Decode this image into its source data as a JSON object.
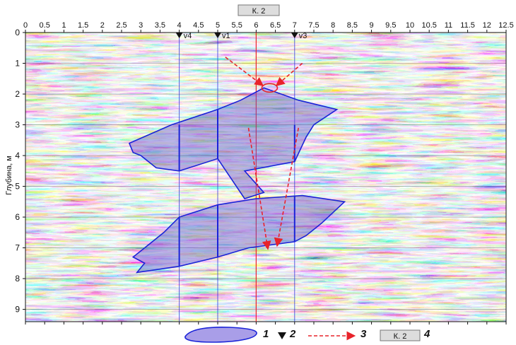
{
  "chart_data": {
    "type": "radargram",
    "xlim": [
      0,
      12.5
    ],
    "ylim": [
      0,
      9.4
    ],
    "x_ticks": [
      "0",
      "0.5",
      "1",
      "1.5",
      "2",
      "2.5",
      "3",
      "3.5",
      "4",
      "4.5",
      "5",
      "5.5",
      "6",
      "6.5",
      "7",
      "7.5",
      "8",
      "8.5",
      "9",
      "9.5",
      "10",
      "10.5",
      "11",
      "11.5",
      "12",
      "12.5"
    ],
    "y_ticks": [
      "0",
      "1",
      "2",
      "3",
      "4",
      "5",
      "6",
      "7",
      "8",
      "9"
    ],
    "ylabel": "Глубина, м",
    "profile_label": "К. 2",
    "markers": [
      {
        "label": "v4",
        "x": 4.0
      },
      {
        "label": "v1",
        "x": 5.0
      },
      {
        "label": "v3",
        "x": 7.0
      }
    ],
    "zones": [
      {
        "points": [
          [
            2.7,
            3.6
          ],
          [
            3.8,
            3.0
          ],
          [
            5.0,
            2.5
          ],
          [
            5.6,
            2.2
          ],
          [
            6.2,
            1.8
          ],
          [
            7.1,
            2.2
          ],
          [
            8.1,
            2.5
          ],
          [
            7.5,
            3.0
          ],
          [
            7.3,
            3.4
          ],
          [
            7.0,
            4.2
          ],
          [
            5.7,
            4.5
          ],
          [
            6.2,
            5.2
          ],
          [
            5.7,
            5.4
          ],
          [
            5.0,
            4.1
          ],
          [
            4.0,
            4.5
          ],
          [
            3.4,
            4.4
          ],
          [
            3.0,
            4.0
          ],
          [
            2.8,
            3.9
          ]
        ]
      },
      {
        "points": [
          [
            2.8,
            7.3
          ],
          [
            3.2,
            6.9
          ],
          [
            3.6,
            6.5
          ],
          [
            4.0,
            6.0
          ],
          [
            5.0,
            5.6
          ],
          [
            6.0,
            5.4
          ],
          [
            7.2,
            5.3
          ],
          [
            8.3,
            5.5
          ],
          [
            7.7,
            6.2
          ],
          [
            7.3,
            6.6
          ],
          [
            7.0,
            6.8
          ],
          [
            5.8,
            7.0
          ],
          [
            5.0,
            7.3
          ],
          [
            4.0,
            7.6
          ],
          [
            2.9,
            7.8
          ],
          [
            3.1,
            7.5
          ]
        ]
      }
    ],
    "arrows": [
      {
        "from": [
          5.2,
          0.8
        ],
        "to": [
          6.15,
          1.7
        ]
      },
      {
        "from": [
          7.2,
          1.0
        ],
        "to": [
          6.55,
          1.7
        ]
      },
      {
        "from": [
          5.8,
          3.1
        ],
        "to": [
          6.3,
          7.0
        ]
      },
      {
        "from": [
          7.1,
          3.1
        ],
        "to": [
          6.55,
          6.9
        ]
      }
    ],
    "small_circle": {
      "x": 6.35,
      "y": 1.8
    },
    "legend": [
      {
        "number": "1",
        "symbol": "zone"
      },
      {
        "number": "2",
        "symbol": "triangle"
      },
      {
        "number": "3",
        "symbol": "arrow"
      },
      {
        "number": "4",
        "symbol": "box",
        "box_text": "К. 2"
      }
    ],
    "colors": {
      "zone_fill": "#6a5acd",
      "zone_stroke": "#1a23d8",
      "arrow": "#e8232a",
      "vline": "#1a23d8",
      "red_line": "#e8232a"
    }
  }
}
